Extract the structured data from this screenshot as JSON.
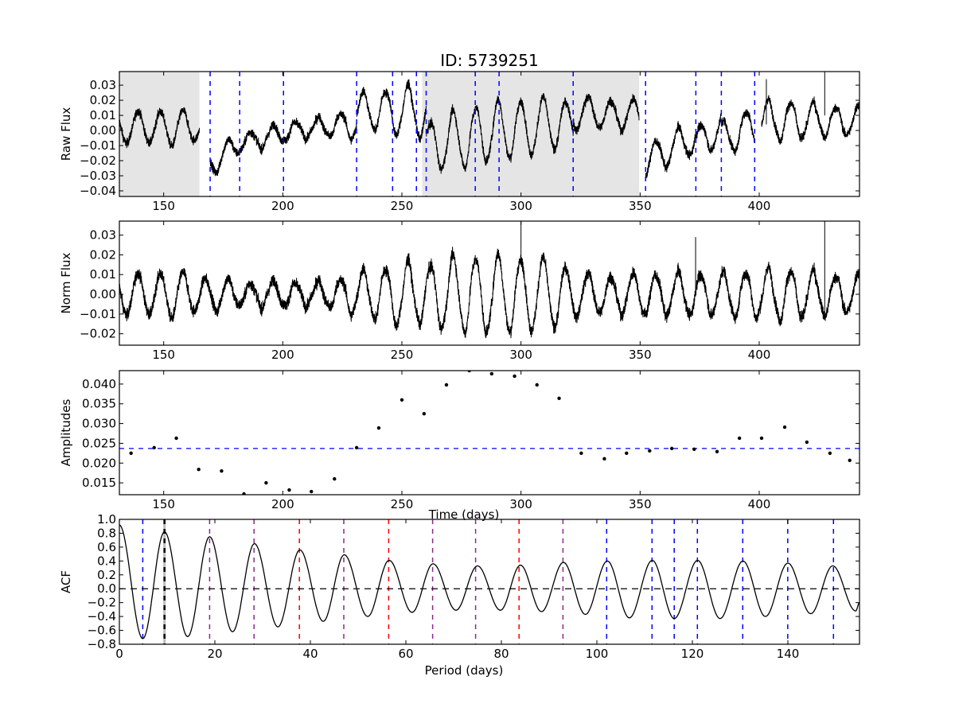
{
  "title": "ID: 5739251",
  "chart_data": [
    {
      "type": "line",
      "panel": "raw",
      "ylabel": "Raw Flux",
      "xlim": [
        131.4,
        442.1
      ],
      "ylim": [
        -0.0437,
        0.039
      ],
      "xticks": [
        150,
        200,
        250,
        300,
        350,
        400
      ],
      "yticks": [
        "0.03",
        "0.02",
        "0.01",
        "0.00",
        "-0.01",
        "-0.02",
        "-0.03",
        "-0.04"
      ],
      "shaded_ranges": [
        [
          131.4,
          165.0
        ],
        [
          258.5,
          349.6
        ]
      ],
      "shade_color": "#e5e5e5",
      "quarter_boundaries": [
        169.5,
        181.9,
        200.3,
        231.0,
        246.1,
        256.1,
        260.2,
        280.8,
        290.8,
        321.9,
        352.3,
        373.4,
        384.1,
        398.1
      ],
      "boundary_color": "#0000ff",
      "segment_offsets": [
        [
          131.4,
          165.0,
          0.002,
          0.002
        ],
        [
          169.5,
          181.9,
          -0.022,
          -0.009
        ],
        [
          182.0,
          200.3,
          -0.008,
          -0.002
        ],
        [
          200.3,
          231.0,
          -0.001,
          0.005
        ],
        [
          231.0,
          256.1,
          0.013,
          0.013
        ],
        [
          256.1,
          260.2,
          0.01,
          0.01
        ],
        [
          260.2,
          280.8,
          -0.01,
          -0.004
        ],
        [
          280.8,
          321.9,
          -0.002,
          0.006
        ],
        [
          321.9,
          349.6,
          0.012,
          0.01
        ],
        [
          352.3,
          373.4,
          -0.02,
          -0.004
        ],
        [
          373.4,
          384.1,
          -0.008,
          0.001
        ],
        [
          384.1,
          398.1,
          -0.006,
          0.004
        ],
        [
          401.0,
          442.1,
          0.007,
          0.006
        ]
      ]
    },
    {
      "type": "line",
      "panel": "norm",
      "ylabel": "Norm Flux",
      "xlim": [
        131.4,
        442.1
      ],
      "ylim": [
        -0.0258,
        0.0371
      ],
      "xticks": [
        150,
        200,
        250,
        300,
        350,
        400
      ],
      "yticks": [
        "0.03",
        "0.02",
        "0.01",
        "0.00",
        "-0.01",
        "-0.02"
      ],
      "spikes": [
        [
          300.0,
          0.037
        ],
        [
          373.3,
          0.029
        ],
        [
          427.5,
          0.037
        ]
      ]
    },
    {
      "type": "scatter",
      "panel": "amplitudes",
      "ylabel": "Amplitudes",
      "xlabel": "Time (days)",
      "xlim": [
        131.4,
        442.1
      ],
      "ylim": [
        0.012,
        0.0434
      ],
      "xticks": [
        150,
        200,
        250,
        300,
        350,
        400
      ],
      "yticks": [
        "0.040",
        "0.035",
        "0.030",
        "0.025",
        "0.020",
        "0.015"
      ],
      "points": [
        [
          136.3,
          0.0225
        ],
        [
          146.0,
          0.0239
        ],
        [
          155.3,
          0.0263
        ],
        [
          164.7,
          0.0184
        ],
        [
          174.3,
          0.018
        ],
        [
          183.7,
          0.0122
        ],
        [
          193.0,
          0.015
        ],
        [
          202.7,
          0.0132
        ],
        [
          212.0,
          0.0128
        ],
        [
          221.7,
          0.016
        ],
        [
          231.0,
          0.0239
        ],
        [
          240.3,
          0.0289
        ],
        [
          250.0,
          0.036
        ],
        [
          259.3,
          0.0325
        ],
        [
          268.7,
          0.0398
        ],
        [
          278.3,
          0.0434
        ],
        [
          287.7,
          0.0426
        ],
        [
          297.3,
          0.042
        ],
        [
          306.7,
          0.0398
        ],
        [
          316.0,
          0.0364
        ],
        [
          325.3,
          0.0225
        ],
        [
          335.0,
          0.0211
        ],
        [
          344.3,
          0.0225
        ],
        [
          354.0,
          0.0231
        ],
        [
          363.3,
          0.0237
        ],
        [
          372.7,
          0.0235
        ],
        [
          382.3,
          0.0229
        ],
        [
          391.7,
          0.0263
        ],
        [
          401.0,
          0.0263
        ],
        [
          410.7,
          0.0291
        ],
        [
          420.0,
          0.0253
        ],
        [
          429.7,
          0.0225
        ],
        [
          438.0,
          0.0207
        ]
      ],
      "mean_line": 0.0237,
      "mean_line_color": "#0000ff"
    },
    {
      "type": "line",
      "panel": "acf",
      "ylabel": "ACF",
      "xlabel": "Period (days)",
      "xlim": [
        0,
        155
      ],
      "ylim": [
        -0.8,
        1.0
      ],
      "xticks": [
        0,
        20,
        40,
        60,
        80,
        100,
        120,
        140
      ],
      "yticks": [
        "1.0",
        "0.8",
        "0.6",
        "0.4",
        "0.2",
        "0.0",
        "-0.2",
        "-0.4",
        "-0.6",
        "-0.8"
      ],
      "extrema": [
        [
          0,
          0.92
        ],
        [
          4.9,
          -0.72
        ],
        [
          9.45,
          0.82
        ],
        [
          14.3,
          -0.69
        ],
        [
          18.9,
          0.75
        ],
        [
          23.7,
          -0.62
        ],
        [
          28.3,
          0.65
        ],
        [
          33.2,
          -0.55
        ],
        [
          37.8,
          0.56
        ],
        [
          42.7,
          -0.47
        ],
        [
          47.1,
          0.49
        ],
        [
          52.0,
          -0.4
        ],
        [
          56.5,
          0.41
        ],
        [
          61.3,
          -0.34
        ],
        [
          65.7,
          0.36
        ],
        [
          70.5,
          -0.31
        ],
        [
          75.0,
          0.33
        ],
        [
          79.8,
          -0.31
        ],
        [
          84.0,
          0.34
        ],
        [
          88.4,
          -0.33
        ],
        [
          93.0,
          0.38
        ],
        [
          97.6,
          -0.37
        ],
        [
          102.2,
          0.4
        ],
        [
          106.8,
          -0.42
        ],
        [
          111.6,
          0.41
        ],
        [
          116.2,
          -0.43
        ],
        [
          121.1,
          0.41
        ],
        [
          125.8,
          -0.43
        ],
        [
          130.6,
          0.4
        ],
        [
          135.3,
          -0.4
        ],
        [
          140.0,
          0.37
        ],
        [
          144.8,
          -0.36
        ],
        [
          149.4,
          0.33
        ],
        [
          154.2,
          -0.32
        ],
        [
          155.0,
          -0.2
        ]
      ],
      "zero_line": 0.0,
      "period": 9.45,
      "period_band": [
        9.2,
        9.7
      ],
      "lag_lines": [
        {
          "x": 4.9,
          "color": "#0000ff"
        },
        {
          "x": 18.9,
          "color": "#8a2a8a"
        },
        {
          "x": 28.2,
          "color": "#8a2a8a"
        },
        {
          "x": 37.7,
          "color": "#ff0000"
        },
        {
          "x": 47.0,
          "color": "#8a2a8a"
        },
        {
          "x": 56.4,
          "color": "#ff0000"
        },
        {
          "x": 65.6,
          "color": "#8a2a8a"
        },
        {
          "x": 74.6,
          "color": "#8a2a8a"
        },
        {
          "x": 83.7,
          "color": "#ff0000"
        },
        {
          "x": 92.9,
          "color": "#8a2a8a"
        },
        {
          "x": 102.05,
          "color": "#0000ff"
        },
        {
          "x": 111.55,
          "color": "#0000ff"
        },
        {
          "x": 116.2,
          "color": "#0000ff"
        },
        {
          "x": 121.05,
          "color": "#0000ff"
        },
        {
          "x": 130.55,
          "color": "#0000ff"
        },
        {
          "x": 139.97,
          "color": "#0000ff"
        },
        {
          "x": 149.55,
          "color": "#0000ff"
        }
      ]
    }
  ]
}
